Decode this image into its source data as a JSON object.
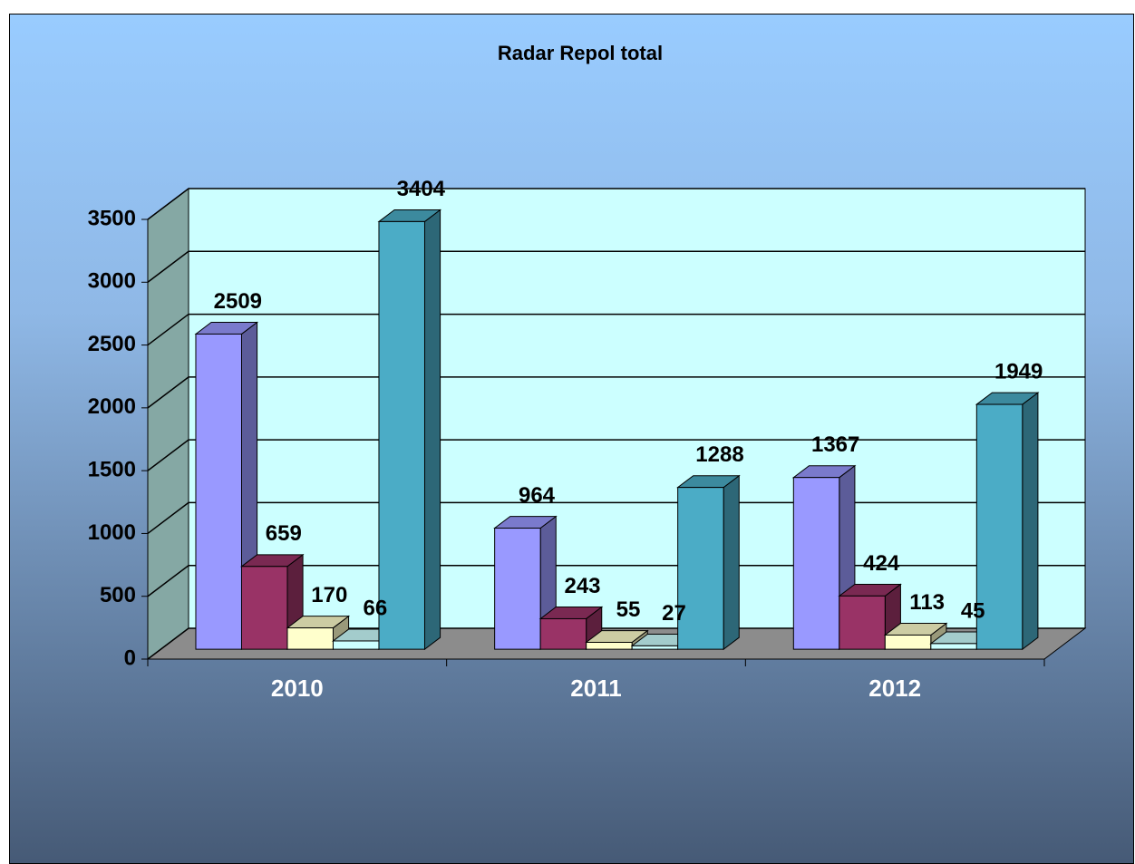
{
  "chart_data": {
    "type": "bar3d",
    "title": "Radar Repol total",
    "categories": [
      "2010",
      "2011",
      "2012"
    ],
    "series": [
      {
        "color": "#9999ff",
        "values": [
          2509,
          964,
          1367
        ]
      },
      {
        "color": "#993366",
        "values": [
          659,
          243,
          424
        ]
      },
      {
        "color": "#ffffcc",
        "values": [
          170,
          55,
          113
        ]
      },
      {
        "color": "#ccffff",
        "values": [
          66,
          27,
          45
        ]
      },
      {
        "color": "#4bacc6",
        "values": [
          3404,
          1288,
          1949
        ]
      }
    ],
    "ylim": [
      0,
      3500
    ],
    "yticks": [
      0,
      500,
      1000,
      1500,
      2000,
      2500,
      3000,
      3500
    ],
    "grid": true
  }
}
